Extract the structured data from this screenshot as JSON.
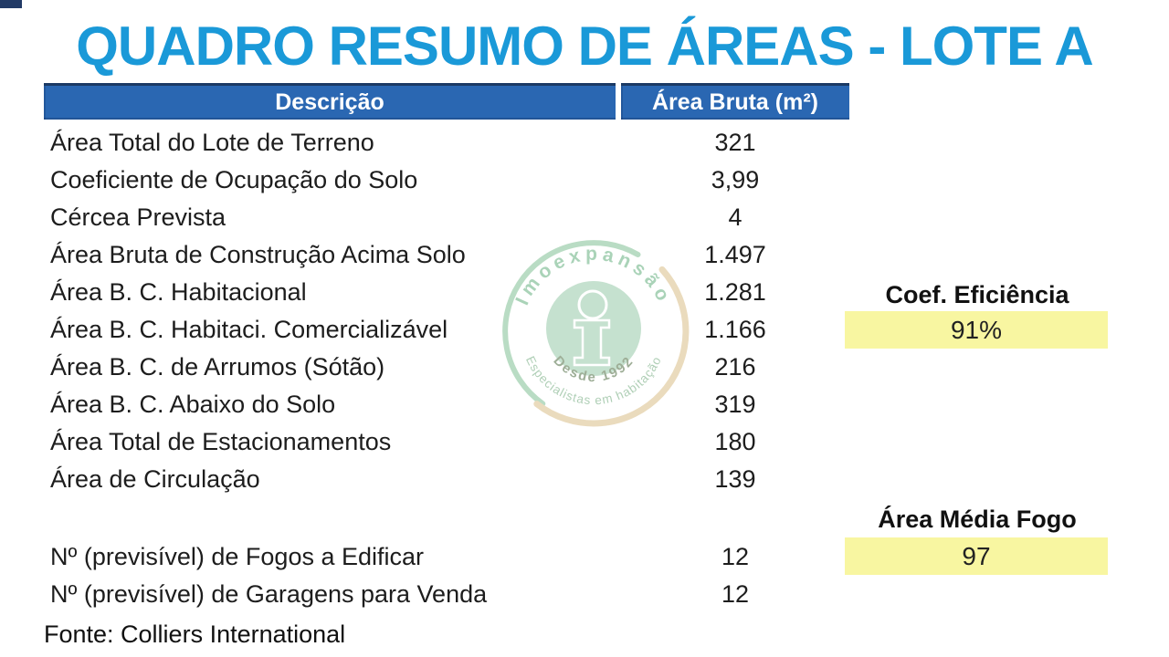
{
  "title": "QUADRO RESUMO DE ÁREAS - LOTE A",
  "table": {
    "columns": {
      "description": "Descrição",
      "gross_area": "Área Bruta (m²)"
    },
    "rows": [
      {
        "label": "Área Total do Lote de Terreno",
        "value": "321"
      },
      {
        "label": "Coeficiente de Ocupação do Solo",
        "value": "3,99"
      },
      {
        "label": "Cércea Prevista",
        "value": "4"
      },
      {
        "label": "Área Bruta de Construção Acima Solo",
        "value": "1.497"
      },
      {
        "label": "Área B. C. Habitacional",
        "value": "1.281"
      },
      {
        "label": "Área B. C. Habitaci. Comercializável",
        "value": "1.166"
      },
      {
        "label": "Área B. C. de Arrumos (Sótão)",
        "value": "216"
      },
      {
        "label": "Área B. C. Abaixo do Solo",
        "value": "319"
      },
      {
        "label": "Área Total de Estacionamentos",
        "value": "180"
      },
      {
        "label": "Área de Circulação",
        "value": "139"
      },
      {
        "label": "Nº (previsível) de Fogos a Edificar",
        "value": "12",
        "spacer_before": true
      },
      {
        "label": "Nº (previsível) de Garagens para Venda",
        "value": "12"
      }
    ]
  },
  "callouts": {
    "efficiency": {
      "label": "Coef. Eficiência",
      "value": "91%"
    },
    "avg_dwelling_area": {
      "label": "Área Média Fogo",
      "value": "97"
    }
  },
  "watermark": {
    "brand": "Imoexpansão",
    "since": "Desde  1992",
    "tagline": "Especialistas em habitação"
  },
  "footer": {
    "source": "Fonte: Colliers International"
  },
  "colors": {
    "title_blue": "#1a99d8",
    "header_bg": "#2a67b2",
    "header_text": "#ffffff",
    "highlight_yellow": "#f8f6a1",
    "watermark_green": "#c1dfcb",
    "watermark_arc_green": "#b4dabf",
    "watermark_beige": "#e9d8b8"
  }
}
